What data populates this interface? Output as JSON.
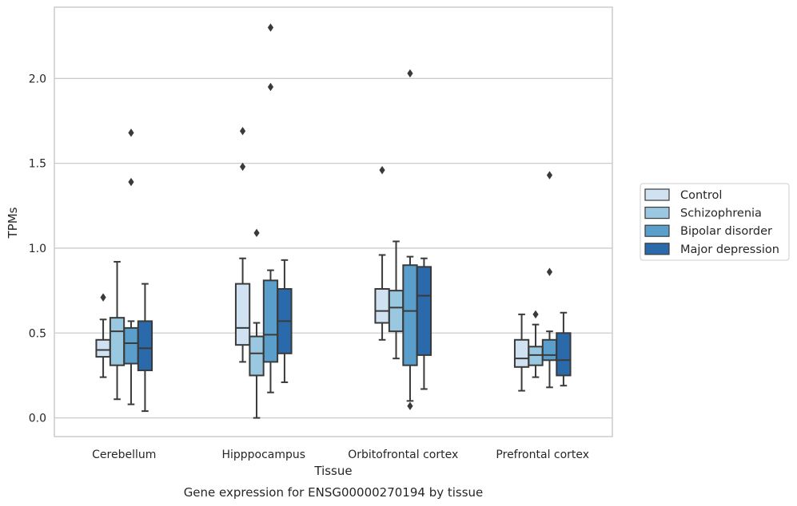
{
  "chart_data": {
    "type": "box",
    "title": "",
    "caption": "Gene expression for ENSG00000270194 by tissue",
    "xlabel": "Tissue",
    "ylabel": "TPMs",
    "ylim": [
      -0.11,
      2.42
    ],
    "yticks": [
      0.0,
      0.5,
      1.0,
      1.5,
      2.0
    ],
    "ytick_labels": [
      "0.0",
      "0.5",
      "1.0",
      "1.5",
      "2.0"
    ],
    "grid": "horizontal",
    "legend_position": "right",
    "categories": [
      "Cerebellum",
      "Hipppocampus",
      "Orbitofrontal cortex",
      "Prefrontal cortex"
    ],
    "series": [
      {
        "name": "Control",
        "color": "#d0e2f2",
        "boxes": [
          {
            "whisker_low": 0.24,
            "q1": 0.36,
            "median": 0.4,
            "q3": 0.46,
            "whisker_high": 0.58,
            "outliers": [
              0.71
            ]
          },
          {
            "whisker_low": 0.33,
            "q1": 0.43,
            "median": 0.53,
            "q3": 0.79,
            "whisker_high": 0.94,
            "outliers": [
              1.48,
              1.69
            ]
          },
          {
            "whisker_low": 0.46,
            "q1": 0.56,
            "median": 0.63,
            "q3": 0.76,
            "whisker_high": 0.96,
            "outliers": [
              1.46
            ]
          },
          {
            "whisker_low": 0.16,
            "q1": 0.3,
            "median": 0.35,
            "q3": 0.46,
            "whisker_high": 0.61,
            "outliers": []
          }
        ]
      },
      {
        "name": "Schizophrenia",
        "color": "#9ac8e0",
        "boxes": [
          {
            "whisker_low": 0.11,
            "q1": 0.31,
            "median": 0.51,
            "q3": 0.59,
            "whisker_high": 0.92,
            "outliers": []
          },
          {
            "whisker_low": 0.0,
            "q1": 0.25,
            "median": 0.38,
            "q3": 0.48,
            "whisker_high": 0.56,
            "outliers": [
              1.09
            ]
          },
          {
            "whisker_low": 0.35,
            "q1": 0.51,
            "median": 0.65,
            "q3": 0.75,
            "whisker_high": 1.04,
            "outliers": []
          },
          {
            "whisker_low": 0.24,
            "q1": 0.31,
            "median": 0.37,
            "q3": 0.42,
            "whisker_high": 0.55,
            "outliers": [
              0.61
            ]
          }
        ]
      },
      {
        "name": "Bipolar disorder",
        "color": "#5a9fcc",
        "boxes": [
          {
            "whisker_low": 0.08,
            "q1": 0.32,
            "median": 0.44,
            "q3": 0.53,
            "whisker_high": 0.57,
            "outliers": [
              1.39,
              1.68
            ]
          },
          {
            "whisker_low": 0.15,
            "q1": 0.33,
            "median": 0.49,
            "q3": 0.81,
            "whisker_high": 0.87,
            "outliers": [
              1.95,
              2.3
            ]
          },
          {
            "whisker_low": 0.1,
            "q1": 0.31,
            "median": 0.63,
            "q3": 0.9,
            "whisker_high": 0.95,
            "outliers": [
              0.07,
              2.03
            ]
          },
          {
            "whisker_low": 0.18,
            "q1": 0.34,
            "median": 0.37,
            "q3": 0.46,
            "whisker_high": 0.51,
            "outliers": [
              0.86,
              1.43
            ]
          }
        ]
      },
      {
        "name": "Major depression",
        "color": "#2a6aab",
        "boxes": [
          {
            "whisker_low": 0.04,
            "q1": 0.28,
            "median": 0.41,
            "q3": 0.57,
            "whisker_high": 0.79,
            "outliers": []
          },
          {
            "whisker_low": 0.21,
            "q1": 0.38,
            "median": 0.57,
            "q3": 0.76,
            "whisker_high": 0.93,
            "outliers": []
          },
          {
            "whisker_low": 0.17,
            "q1": 0.37,
            "median": 0.72,
            "q3": 0.89,
            "whisker_high": 0.94,
            "outliers": []
          },
          {
            "whisker_low": 0.19,
            "q1": 0.25,
            "median": 0.34,
            "q3": 0.5,
            "whisker_high": 0.62,
            "outliers": []
          }
        ]
      }
    ]
  }
}
